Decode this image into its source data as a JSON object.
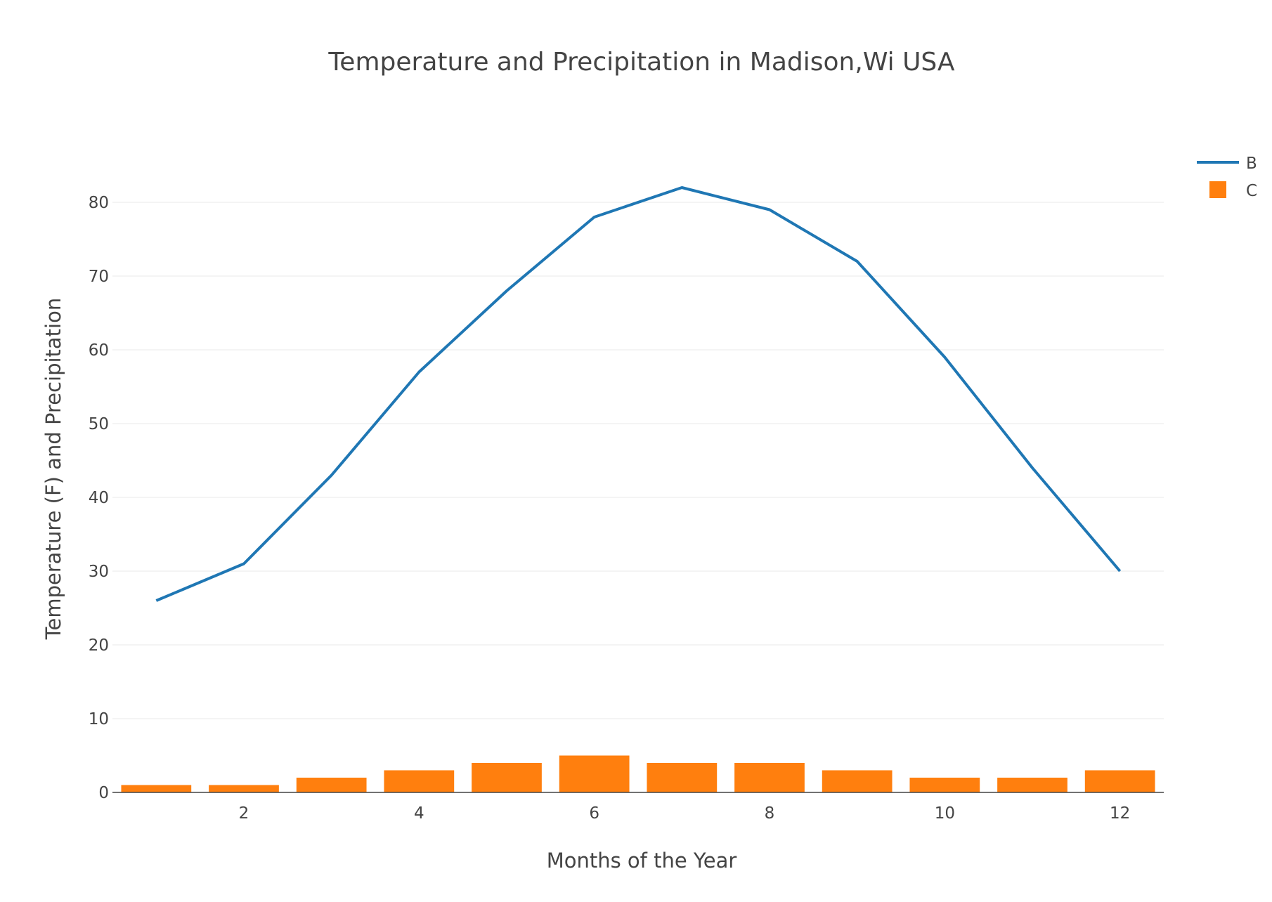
{
  "chart_data": {
    "type": "bar",
    "title": "Temperature and Precipitation in Madison,Wi USA",
    "xlabel": "Months of the Year",
    "ylabel": "Temperature (F) and Precipitation",
    "x": [
      1,
      2,
      3,
      4,
      5,
      6,
      7,
      8,
      9,
      10,
      11,
      12
    ],
    "xlim": [
      0.5,
      12.5
    ],
    "ylim": [
      0,
      86
    ],
    "x_ticks": [
      2,
      4,
      6,
      8,
      10,
      12
    ],
    "y_ticks": [
      0,
      10,
      20,
      30,
      40,
      50,
      60,
      70,
      80
    ],
    "grid": "horizontal",
    "legend_position": "top-right",
    "series": [
      {
        "name": "B",
        "type": "line",
        "color": "#1f77b4",
        "values": [
          26,
          31,
          43,
          57,
          68,
          78,
          82,
          79,
          72,
          59,
          44,
          30
        ]
      },
      {
        "name": "C",
        "type": "bar",
        "color": "#ff7f0e",
        "values": [
          1,
          1,
          2,
          3,
          4,
          5,
          4,
          4,
          3,
          2,
          2,
          3
        ]
      }
    ]
  }
}
